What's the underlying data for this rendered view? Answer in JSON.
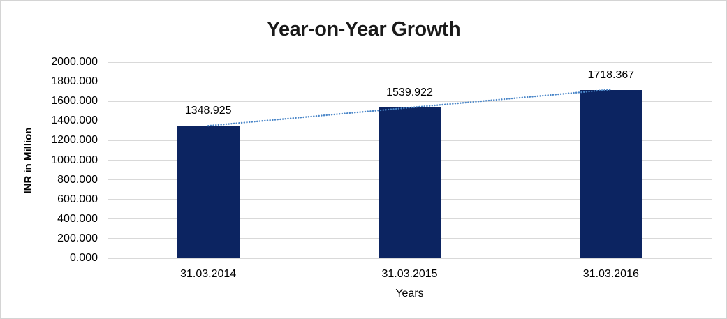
{
  "chart_data": {
    "type": "bar",
    "title": "Year-on-Year Growth",
    "xlabel": "Years",
    "ylabel": "INR in Million",
    "categories": [
      "31.03.2014",
      "31.03.2015",
      "31.03.2016"
    ],
    "values": [
      1348.925,
      1539.922,
      1718.367
    ],
    "value_labels": [
      "1348.925",
      "1539.922",
      "1718.367"
    ],
    "ylim": [
      0,
      2000
    ],
    "yticks": [
      {
        "value": 0,
        "label": "0.000"
      },
      {
        "value": 200,
        "label": "200.000"
      },
      {
        "value": 400,
        "label": "400.000"
      },
      {
        "value": 600,
        "label": "600.000"
      },
      {
        "value": 800,
        "label": "800.000"
      },
      {
        "value": 1000,
        "label": "1000.000"
      },
      {
        "value": 1200,
        "label": "1200.000"
      },
      {
        "value": 1400,
        "label": "1400.000"
      },
      {
        "value": 1600,
        "label": "1600.000"
      },
      {
        "value": 1800,
        "label": "1800.000"
      },
      {
        "value": 2000,
        "label": "2000.000"
      }
    ],
    "grid": true,
    "legend": "none",
    "trendline": {
      "type": "linear",
      "style": "dotted"
    },
    "colors": {
      "bar": "#0c2461",
      "trendline": "#4a86c8",
      "gridline": "#d9d9d9",
      "text": "#000000",
      "title_text": "#1a1a1a",
      "background": "#ffffff",
      "border": "#d4d4d4"
    }
  }
}
